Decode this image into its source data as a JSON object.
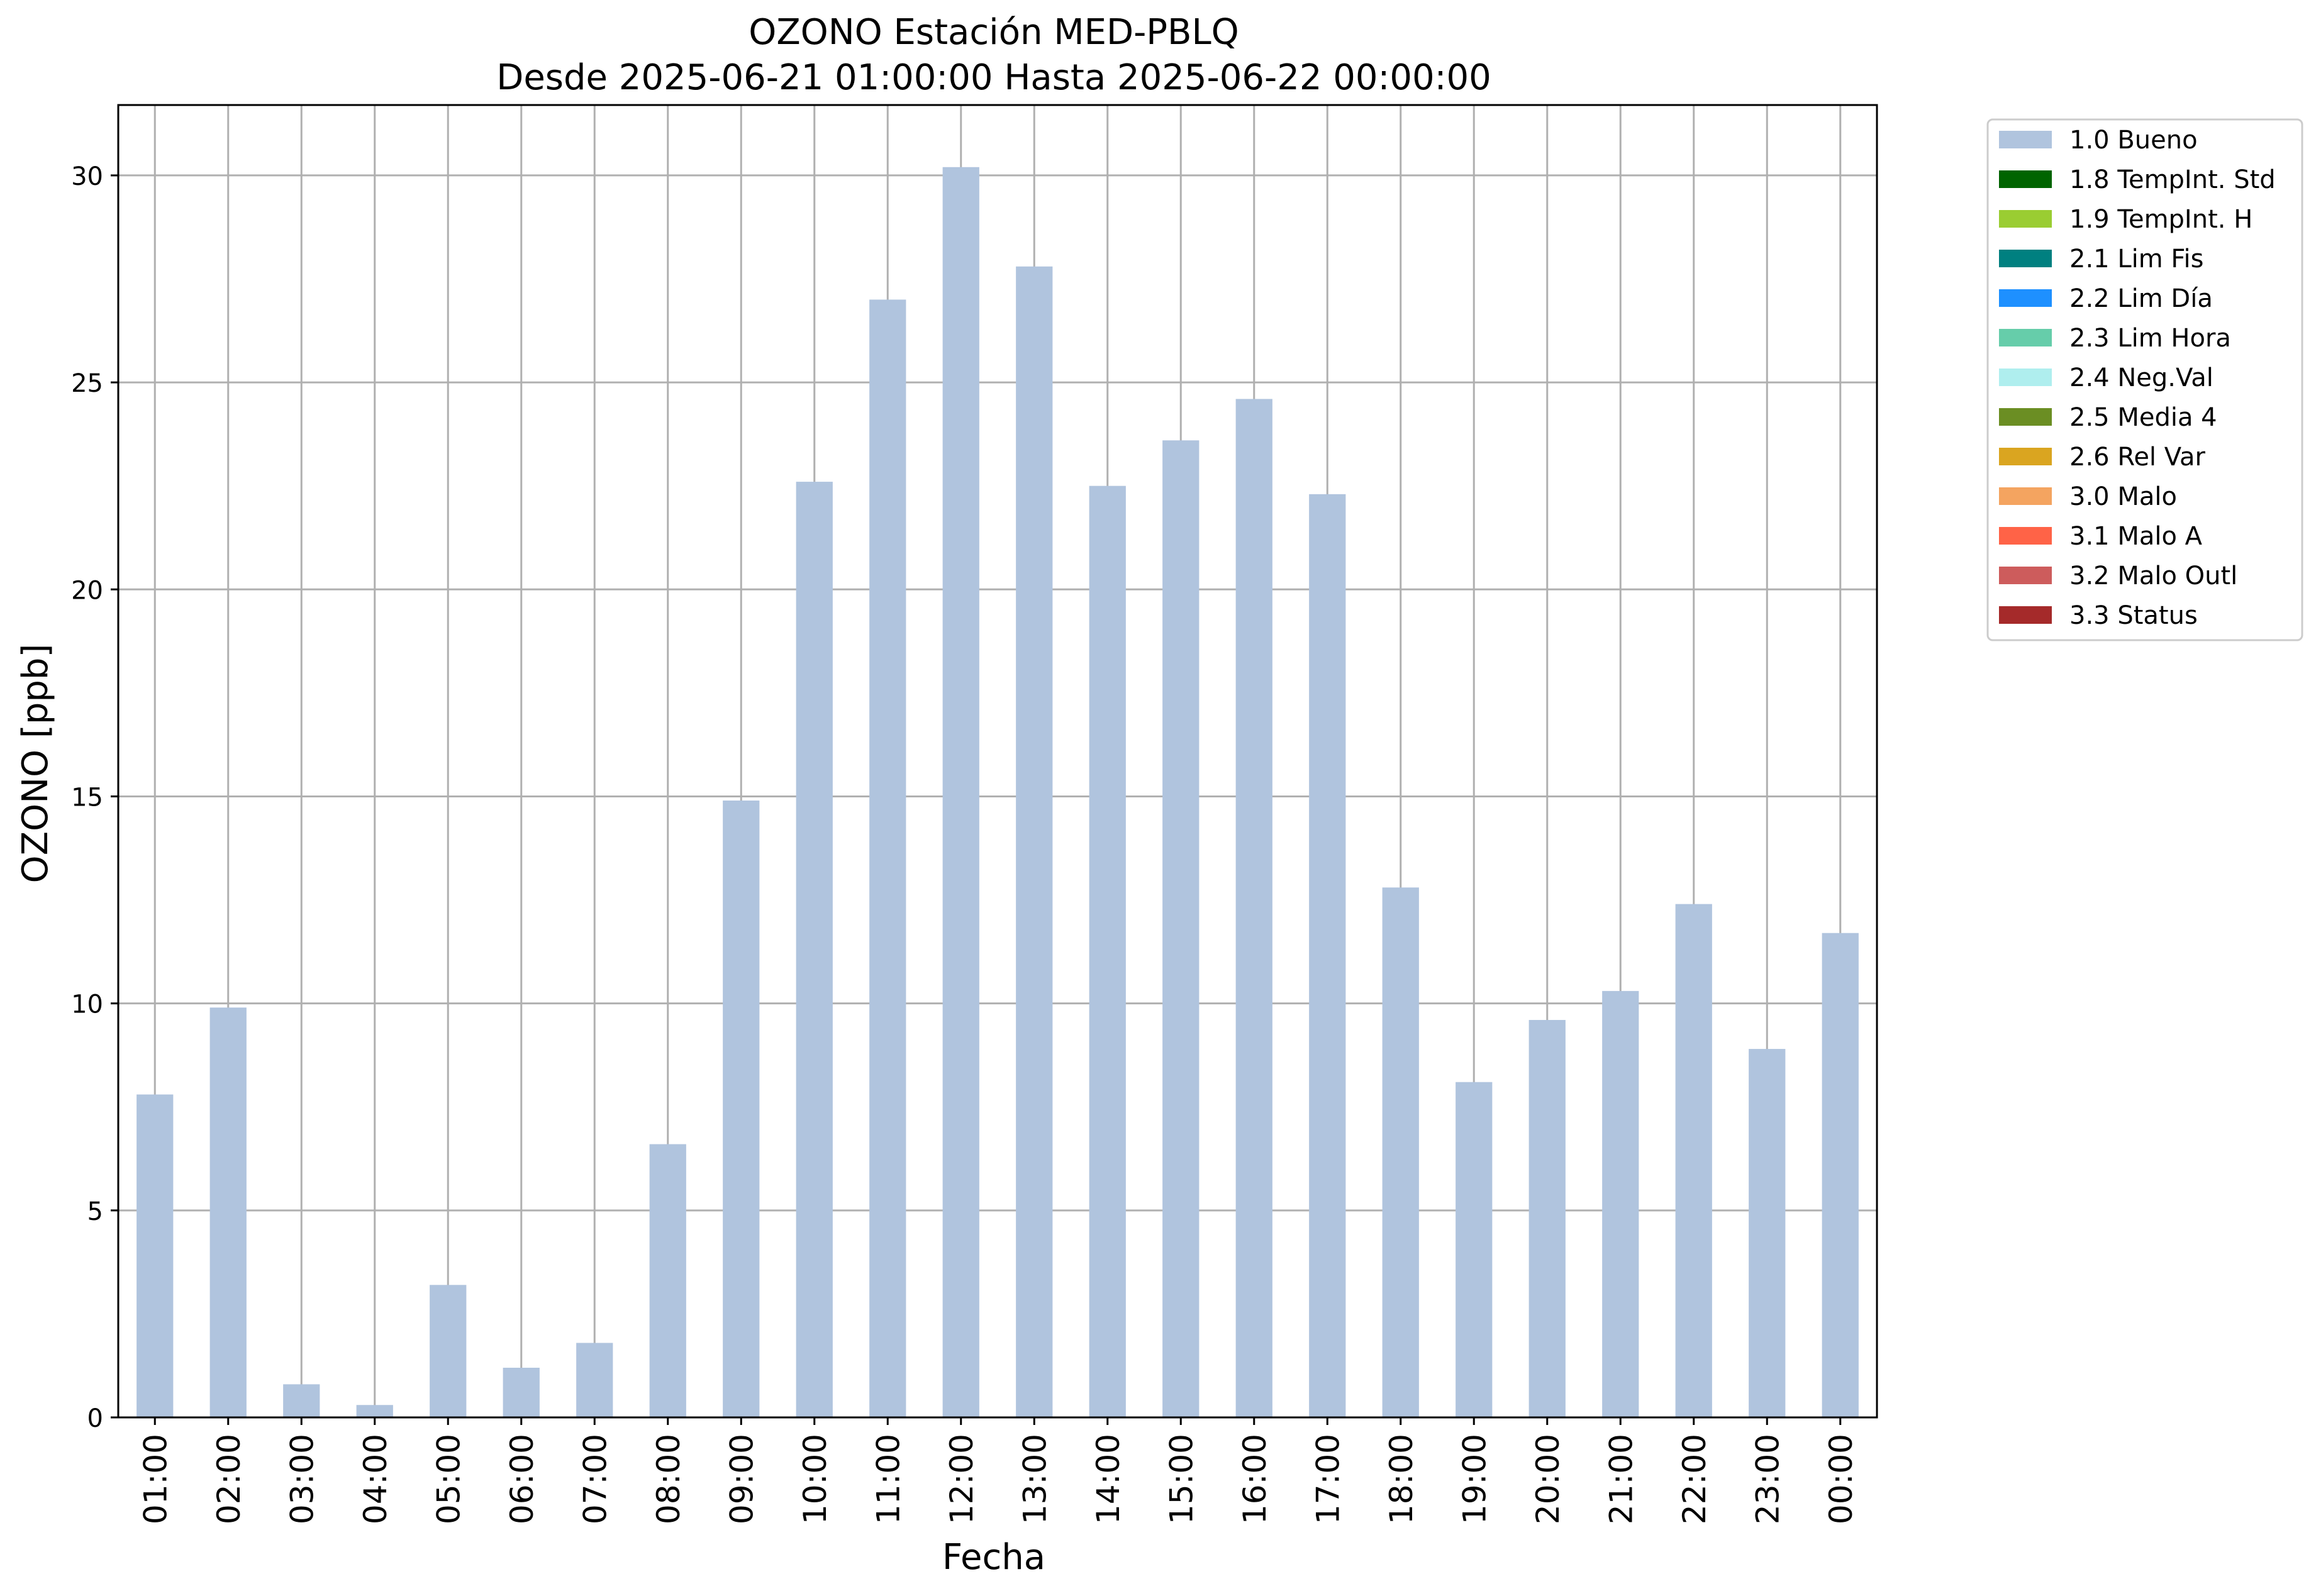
{
  "chart_data": {
    "type": "bar",
    "title_line1": "OZONO Estación MED-PBLQ",
    "title_line2": "Desde 2025-06-21 01:00:00 Hasta 2025-06-22 00:00:00",
    "xlabel": "Fecha",
    "ylabel": "OZONO [ppb]",
    "categories": [
      "01:00",
      "02:00",
      "03:00",
      "04:00",
      "05:00",
      "06:00",
      "07:00",
      "08:00",
      "09:00",
      "10:00",
      "11:00",
      "12:00",
      "13:00",
      "14:00",
      "15:00",
      "16:00",
      "17:00",
      "18:00",
      "19:00",
      "20:00",
      "21:00",
      "22:00",
      "23:00",
      "00:00"
    ],
    "series": [
      {
        "name": "1.0 Bueno",
        "color": "#b0c4de",
        "values": [
          7.8,
          9.9,
          0.8,
          0.3,
          3.2,
          1.2,
          1.8,
          6.6,
          14.9,
          22.6,
          27.0,
          30.2,
          27.8,
          22.5,
          23.6,
          24.6,
          22.3,
          12.8,
          8.1,
          9.6,
          10.3,
          12.4,
          8.9,
          11.7
        ]
      }
    ],
    "ylim": [
      0,
      31.7
    ],
    "yticks": [
      0,
      5,
      10,
      15,
      20,
      25,
      30
    ],
    "grid": true,
    "legend_position": "outside-top-right",
    "legend": [
      {
        "label": "1.0 Bueno",
        "color": "#b0c4de"
      },
      {
        "label": "1.8 TempInt. Std",
        "color": "#006400"
      },
      {
        "label": "1.9 TempInt. H",
        "color": "#9acd32"
      },
      {
        "label": "2.1 Lim Fis",
        "color": "#008080"
      },
      {
        "label": "2.2 Lim Día",
        "color": "#1e90ff"
      },
      {
        "label": "2.3 Lim Hora",
        "color": "#66cdaa"
      },
      {
        "label": "2.4 Neg.Val",
        "color": "#afeeee"
      },
      {
        "label": "2.5 Media 4",
        "color": "#6b8e23"
      },
      {
        "label": "2.6 Rel Var",
        "color": "#daa520"
      },
      {
        "label": "3.0 Malo",
        "color": "#f4a460"
      },
      {
        "label": "3.1 Malo A",
        "color": "#ff6347"
      },
      {
        "label": "3.2 Malo Outl",
        "color": "#cd5c5c"
      },
      {
        "label": "3.3 Status",
        "color": "#a52a2a"
      }
    ]
  }
}
